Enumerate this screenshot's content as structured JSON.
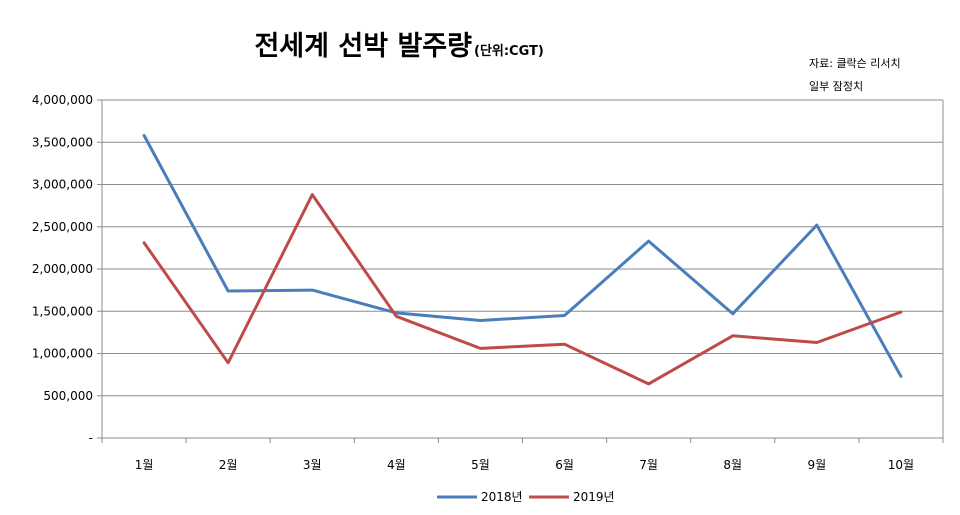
{
  "chart_data": {
    "type": "line",
    "title": "전세계 선박 발주량",
    "title_unit": "(단위:CGT)",
    "notes": [
      "자료: 클락슨 리서치",
      "일부 잠정치"
    ],
    "categories": [
      "1월",
      "2월",
      "3월",
      "4월",
      "5월",
      "6월",
      "7월",
      "8월",
      "9월",
      "10월"
    ],
    "y_ticks": [
      "-",
      "500,000",
      "1,000,000",
      "1,500,000",
      "2,000,000",
      "2,500,000",
      "3,000,000",
      "3,500,000",
      "4,000,000"
    ],
    "ylim": [
      0,
      4000000
    ],
    "grid": true,
    "legend_position": "bottom",
    "series": [
      {
        "name": "2018년",
        "color": "#4a7ebb",
        "values": [
          3580000,
          1740000,
          1750000,
          1480000,
          1390000,
          1450000,
          2330000,
          1470000,
          2520000,
          730000
        ]
      },
      {
        "name": "2019년",
        "color": "#be4b48",
        "values": [
          2310000,
          890000,
          2880000,
          1440000,
          1060000,
          1110000,
          640000,
          1210000,
          1130000,
          1490000
        ]
      }
    ]
  }
}
